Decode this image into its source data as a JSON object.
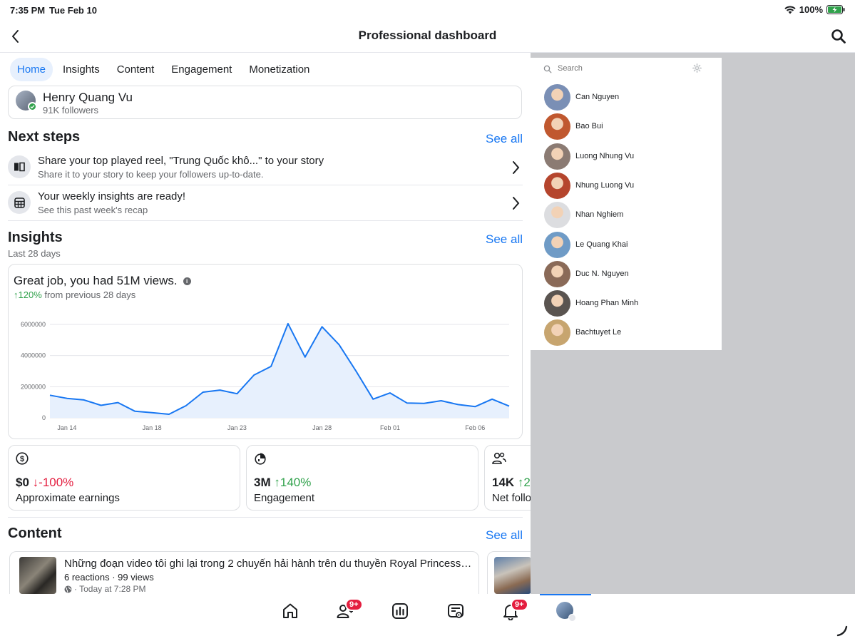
{
  "status": {
    "time": "7:35 PM",
    "date": "Tue Feb 10",
    "battery": "100%"
  },
  "header": {
    "title": "Professional dashboard"
  },
  "tabs": [
    {
      "label": "Home",
      "active": true
    },
    {
      "label": "Insights"
    },
    {
      "label": "Content"
    },
    {
      "label": "Engagement"
    },
    {
      "label": "Monetization"
    }
  ],
  "profile": {
    "name": "Henry Quang Vu",
    "followers": "91K followers"
  },
  "next_steps": {
    "title": "Next steps",
    "see_all": "See all",
    "items": [
      {
        "title": "Share your top played reel, \"Trung Quốc khô...\" to your story",
        "subtitle": "Share it to your story to keep your followers up-to-date.",
        "icon": "book-icon"
      },
      {
        "title": "Your weekly insights are ready!",
        "subtitle": "See this past week's recap",
        "icon": "table-icon"
      }
    ]
  },
  "insights": {
    "title": "Insights",
    "subtitle": "Last 28 days",
    "see_all": "See all",
    "headline": "Great job, you had 51M views.",
    "info": "i",
    "change_arrow": "↑",
    "change_value": "120%",
    "change_text": " from previous 28 days"
  },
  "chart_data": {
    "type": "area",
    "x_ticks": [
      "Jan 14",
      "Jan 18",
      "Jan 23",
      "Jan 28",
      "Feb 01",
      "Feb 06"
    ],
    "y_ticks": [
      "6000000",
      "4000000",
      "2000000",
      "0"
    ],
    "ylim": [
      0,
      6000000
    ],
    "grid": true,
    "fill_color": "#e7f0fd",
    "line_color": "#1877f2",
    "values": [
      1450000,
      1250000,
      1150000,
      800000,
      980000,
      420000,
      330000,
      230000,
      780000,
      1650000,
      1780000,
      1550000,
      2750000,
      3300000,
      6050000,
      3900000,
      5850000,
      4700000,
      3000000,
      1200000,
      1600000,
      950000,
      930000,
      1100000,
      850000,
      720000,
      1200000,
      750000
    ]
  },
  "metrics": [
    {
      "value": "$0",
      "arrow": "↓",
      "change": "-100%",
      "dir": "down",
      "label": "Approximate earnings",
      "icon": "dollar-icon"
    },
    {
      "value": "3M",
      "arrow": "↑",
      "change": "140%",
      "dir": "up",
      "label": "Engagement",
      "icon": "engagement-icon"
    },
    {
      "value": "14K",
      "arrow": "↑",
      "change": "2",
      "dir": "up",
      "label": "Net follo",
      "icon": "followers-icon"
    }
  ],
  "content": {
    "title": "Content",
    "see_all": "See all",
    "post": {
      "title": "Những đoạn video tôi ghi lại trong 2 chuyến hải hành trên du thuyền Royal Princess tro...",
      "stats": "6 reactions · 99 views",
      "time": "· Today at 7:28 PM"
    }
  },
  "friend_panel": {
    "search_placeholder": "Search",
    "friends": [
      {
        "name": "Can Nguyen",
        "color": "#7a8fb5"
      },
      {
        "name": "Bao Bui",
        "color": "#c0582f"
      },
      {
        "name": "Luong Nhung Vu",
        "color": "#8b7b73"
      },
      {
        "name": "Nhung Luong Vu",
        "color": "#b5452d"
      },
      {
        "name": "Nhan Nghiem",
        "color": "#dcdde0"
      },
      {
        "name": "Le Quang Khai",
        "color": "#6f9bc6"
      },
      {
        "name": "Duc N. Nguyen",
        "color": "#8a6a58"
      },
      {
        "name": "Hoang Phan Minh",
        "color": "#5a5450"
      },
      {
        "name": "Bachtuyet Le",
        "color": "#c7a56f"
      }
    ]
  },
  "bottom_nav": {
    "items": [
      {
        "icon": "home-icon"
      },
      {
        "icon": "friends-icon",
        "badge": "9+"
      },
      {
        "icon": "insights-icon"
      },
      {
        "icon": "feeds-icon"
      },
      {
        "icon": "bell-icon",
        "badge": "9+"
      },
      {
        "icon": "profile-avatar"
      }
    ]
  }
}
